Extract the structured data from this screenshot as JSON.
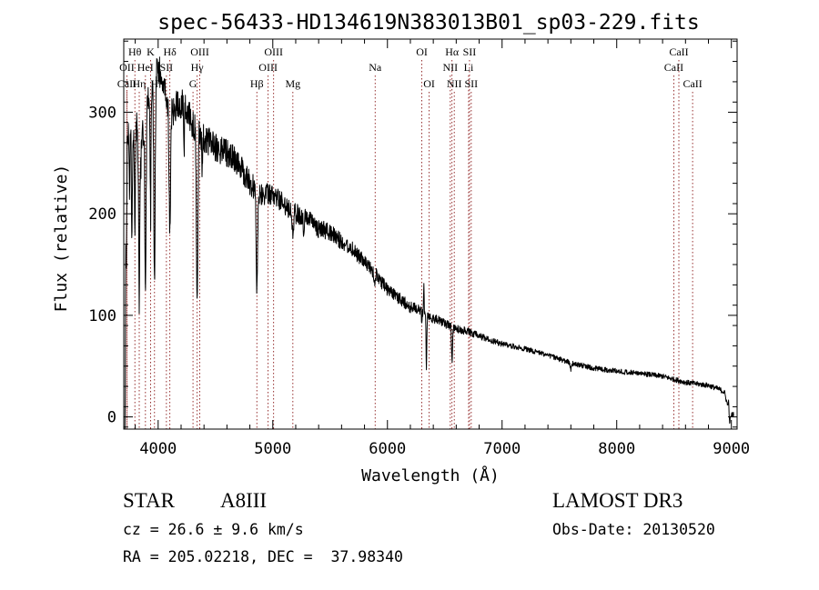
{
  "chart_data": {
    "type": "line",
    "title": "spec-56433-HD134619N383013B01_sp03-229.fits",
    "xlabel": "Wavelength (Å)",
    "ylabel": "Flux (relative)",
    "xlim": [
      3700,
      9050
    ],
    "ylim": [
      -12,
      372
    ],
    "x_ticks": [
      4000,
      5000,
      6000,
      7000,
      8000,
      9000
    ],
    "x_tick_labels": [
      "4000",
      "5000",
      "6000",
      "7000",
      "8000",
      "9000"
    ],
    "y_ticks": [
      0,
      100,
      200,
      300
    ],
    "y_tick_labels": [
      "0",
      "100",
      "200",
      "300"
    ],
    "grid": false,
    "line_color": "#000000",
    "marker_color": "#8b1a1a",
    "spectrum_anchors": [
      [
        3700,
        40
      ],
      [
        3720,
        250
      ],
      [
        3745,
        295
      ],
      [
        3780,
        265
      ],
      [
        3800,
        300
      ],
      [
        3850,
        250
      ],
      [
        3880,
        300
      ],
      [
        3950,
        320
      ],
      [
        4000,
        345
      ],
      [
        4050,
        325
      ],
      [
        4100,
        300
      ],
      [
        4200,
        310
      ],
      [
        4300,
        290
      ],
      [
        4400,
        275
      ],
      [
        4500,
        265
      ],
      [
        4600,
        260
      ],
      [
        4700,
        250
      ],
      [
        4800,
        230
      ],
      [
        4900,
        220
      ],
      [
        5000,
        218
      ],
      [
        5100,
        210
      ],
      [
        5200,
        200
      ],
      [
        5300,
        195
      ],
      [
        5400,
        185
      ],
      [
        5500,
        182
      ],
      [
        5600,
        172
      ],
      [
        5700,
        165
      ],
      [
        5800,
        152
      ],
      [
        5900,
        140
      ],
      [
        6000,
        125
      ],
      [
        6100,
        117
      ],
      [
        6200,
        108
      ],
      [
        6300,
        105
      ],
      [
        6400,
        97
      ],
      [
        6500,
        92
      ],
      [
        6600,
        87
      ],
      [
        6700,
        84
      ],
      [
        6800,
        80
      ],
      [
        6900,
        75
      ],
      [
        7000,
        72
      ],
      [
        7200,
        67
      ],
      [
        7400,
        61
      ],
      [
        7600,
        53
      ],
      [
        7800,
        48
      ],
      [
        8000,
        45
      ],
      [
        8200,
        43
      ],
      [
        8400,
        40
      ],
      [
        8600,
        34
      ],
      [
        8800,
        31
      ],
      [
        8900,
        27
      ],
      [
        8940,
        24
      ],
      [
        8970,
        10
      ],
      [
        8985,
        -5
      ],
      [
        9000,
        2
      ],
      [
        9020,
        3
      ]
    ],
    "absorption_features": [
      [
        3705,
        340,
        8
      ],
      [
        3722,
        90,
        5
      ],
      [
        3750,
        80,
        5
      ],
      [
        3771,
        100,
        5
      ],
      [
        3798,
        110,
        6
      ],
      [
        3835,
        150,
        7
      ],
      [
        3889,
        170,
        8
      ],
      [
        3934,
        120,
        5
      ],
      [
        3968,
        200,
        8
      ],
      [
        4102,
        120,
        9
      ],
      [
        4226,
        45,
        5
      ],
      [
        4340,
        170,
        9
      ],
      [
        4384,
        40,
        5
      ],
      [
        4861,
        95,
        9
      ],
      [
        5175,
        20,
        8
      ],
      [
        5270,
        18,
        6
      ],
      [
        5890,
        12,
        6
      ],
      [
        6300,
        10,
        4
      ],
      [
        6340,
        55,
        5
      ],
      [
        6563,
        35,
        7
      ],
      [
        7600,
        6,
        10
      ]
    ],
    "emission_features": [
      [
        6318,
        25,
        3
      ],
      [
        6555,
        8,
        4
      ],
      [
        8975,
        14,
        3
      ]
    ],
    "noise_amplitude_blue": 16,
    "noise_amplitude_red": 2.5,
    "line_markers": [
      {
        "label": "Hθ",
        "x": 3797,
        "row": 1
      },
      {
        "label": "OII",
        "x": 3727,
        "row": 2
      },
      {
        "label": "CaII",
        "x": 3727,
        "row": 3
      },
      {
        "label": "Hη",
        "x": 3835,
        "row": 3
      },
      {
        "label": "HeI",
        "x": 3889,
        "row": 2
      },
      {
        "label": "K",
        "x": 3934,
        "row": 1
      },
      {
        "label": "H",
        "x": 3968,
        "row": 3
      },
      {
        "label": "SII",
        "x": 4072,
        "row": 2
      },
      {
        "label": "Hδ",
        "x": 4102,
        "row": 1
      },
      {
        "label": "OIII",
        "x": 4363,
        "row": 1
      },
      {
        "label": "Hγ",
        "x": 4340,
        "row": 2
      },
      {
        "label": "G",
        "x": 4304,
        "row": 3
      },
      {
        "label": "Hβ",
        "x": 4861,
        "row": 3
      },
      {
        "label": "OIII",
        "x": 5007,
        "row": 1
      },
      {
        "label": "OIII",
        "x": 4959,
        "row": 2
      },
      {
        "label": "Mg",
        "x": 5175,
        "row": 3
      },
      {
        "label": "Na",
        "x": 5893,
        "row": 2
      },
      {
        "label": "OI",
        "x": 6300,
        "row": 1
      },
      {
        "label": "OI",
        "x": 6364,
        "row": 3
      },
      {
        "label": "Hα",
        "x": 6563,
        "row": 1
      },
      {
        "label": "SII",
        "x": 6716,
        "row": 1
      },
      {
        "label": "NII",
        "x": 6548,
        "row": 2
      },
      {
        "label": "Li",
        "x": 6708,
        "row": 2
      },
      {
        "label": "NII",
        "x": 6583,
        "row": 3
      },
      {
        "label": "SII",
        "x": 6731,
        "row": 3
      },
      {
        "label": "CaII",
        "x": 8542,
        "row": 1
      },
      {
        "label": "CaII",
        "x": 8498,
        "row": 2
      },
      {
        "label": "CaII",
        "x": 8662,
        "row": 3
      }
    ]
  },
  "info": {
    "object_class": "STAR",
    "subclass": "A8III",
    "survey": "LAMOST DR3",
    "cz": "cz = 26.6 ± 9.6 km/s",
    "coords": "RA = 205.02218, DEC =  37.98340",
    "obs_date": "Obs-Date: 20130520"
  }
}
